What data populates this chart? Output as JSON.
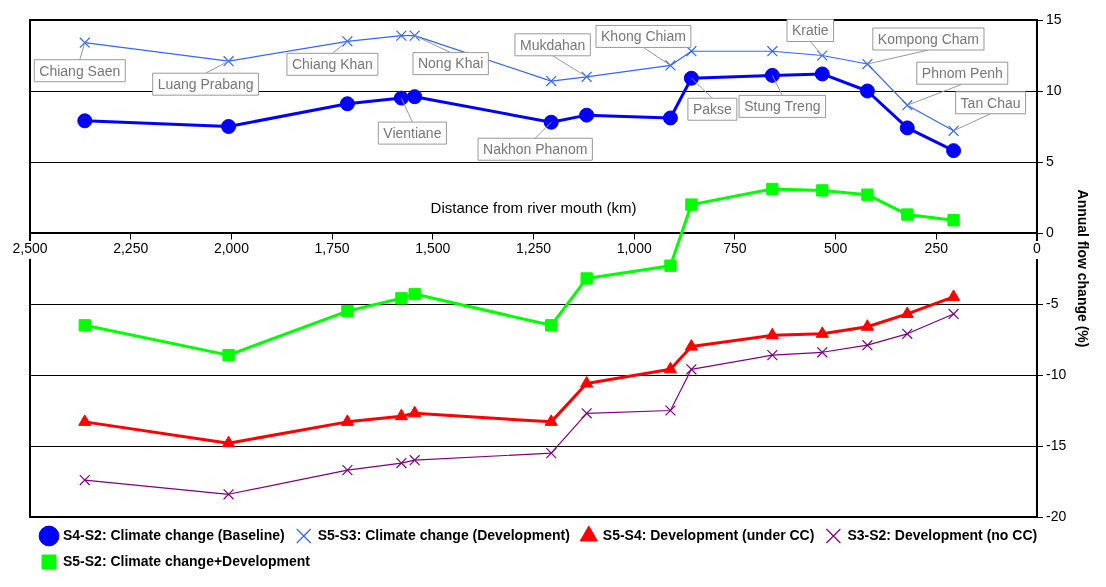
{
  "chart_data": {
    "type": "line",
    "xlabel": "Distance from river mouth (km)",
    "ylabel": "Annual flow change (%)",
    "x": [
      2364,
      2007,
      1712,
      1578,
      1545,
      1206,
      1118,
      910,
      858,
      657,
      533,
      421,
      322,
      207
    ],
    "xlim": [
      2500,
      0
    ],
    "xticks": [
      {
        "value": 2500,
        "label": "2,500"
      },
      {
        "value": 2250,
        "label": "2,250"
      },
      {
        "value": 2000,
        "label": "2,000"
      },
      {
        "value": 1750,
        "label": "1,750"
      },
      {
        "value": 1500,
        "label": "1,500"
      },
      {
        "value": 1250,
        "label": "1,250"
      },
      {
        "value": 1000,
        "label": "1,000"
      },
      750,
      500,
      250,
      0
    ],
    "ylim": [
      -20,
      15
    ],
    "yticks": [
      -20,
      -15,
      -10,
      -5,
      0,
      5,
      10,
      15
    ],
    "grid": "y",
    "legend": "bottom",
    "series": [
      {
        "name": "S4-S2: Climate change (Baseline)",
        "color": "#0000ff",
        "marker": "circle",
        "values": [
          7.9,
          7.5,
          9.1,
          9.5,
          9.6,
          7.8,
          8.3,
          8.1,
          10.9,
          11.1,
          11.2,
          10.0,
          7.4,
          5.8
        ]
      },
      {
        "name": "S5-S3: Climate change (Development)",
        "color": "#3366ff",
        "marker": "cross",
        "values": [
          13.4,
          12.1,
          13.5,
          13.9,
          13.9,
          10.7,
          11.0,
          11.8,
          12.8,
          12.8,
          12.5,
          11.9,
          9.0,
          7.2
        ]
      },
      {
        "name": "S5-S4: Development (under CC)",
        "color": "#ff0000",
        "marker": "triangle",
        "values": [
          -13.3,
          -14.8,
          -13.3,
          -12.9,
          -12.7,
          -13.3,
          -10.6,
          -9.6,
          -8.0,
          -7.2,
          -7.1,
          -6.6,
          -5.7,
          -4.5
        ]
      },
      {
        "name": "S3-S2: Development (no CC)",
        "color": "#800080",
        "marker": "cross",
        "values": [
          -17.4,
          -18.4,
          -16.7,
          -16.2,
          -16.0,
          -15.5,
          -12.7,
          -12.5,
          -9.6,
          -8.6,
          -8.4,
          -7.9,
          -7.1,
          -5.7
        ]
      },
      {
        "name": "S5-S2: Climate change+Development",
        "color": "#00ff00",
        "marker": "square",
        "values": [
          -6.5,
          -8.6,
          -5.5,
          -4.6,
          -4.3,
          -6.5,
          -3.2,
          -2.3,
          2.0,
          3.1,
          3.0,
          2.7,
          1.3,
          0.9
        ]
      }
    ],
    "annotations": [
      {
        "text": "Chiang Saen",
        "x": 2364,
        "y": 13.4
      },
      {
        "text": "Luang Prabang",
        "x": 2007,
        "y": 12.1
      },
      {
        "text": "Chiang Khan",
        "x": 1712,
        "y": 13.5
      },
      {
        "text": "Nong Khai",
        "x": 1545,
        "y": 13.9
      },
      {
        "text": "Vientiane",
        "x": 1578,
        "y": 9.5
      },
      {
        "text": "Nakhon Phanom",
        "x": 1206,
        "y": 7.8
      },
      {
        "text": "Mukdahan",
        "x": 1118,
        "y": 11.0
      },
      {
        "text": "Khong Chiam",
        "x": 910,
        "y": 11.8
      },
      {
        "text": "Pakse",
        "x": 858,
        "y": 10.9
      },
      {
        "text": "Stung Treng",
        "x": 657,
        "y": 11.1
      },
      {
        "text": "Kratie",
        "x": 533,
        "y": 12.5
      },
      {
        "text": "Kompong Cham",
        "x": 421,
        "y": 11.9
      },
      {
        "text": "Phnom Penh",
        "x": 322,
        "y": 9.0
      },
      {
        "text": "Tan Chau",
        "x": 207,
        "y": 7.2
      }
    ]
  }
}
